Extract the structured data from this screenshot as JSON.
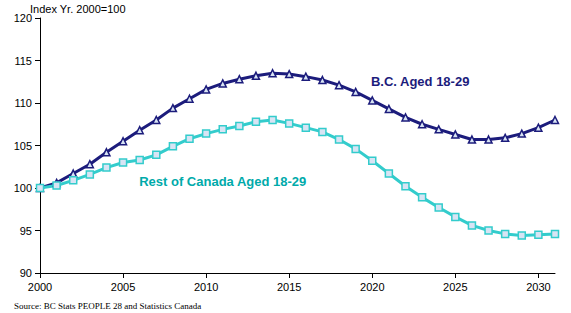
{
  "chart_data": {
    "type": "line",
    "y_label": "Index Yr. 2000=100",
    "source": "Source: BC Stats PEOPLE 28 and Statistics Canada",
    "x": [
      2000,
      2001,
      2002,
      2003,
      2004,
      2005,
      2006,
      2007,
      2008,
      2009,
      2010,
      2011,
      2012,
      2013,
      2014,
      2015,
      2016,
      2017,
      2018,
      2019,
      2020,
      2021,
      2022,
      2023,
      2024,
      2025,
      2026,
      2027,
      2028,
      2029,
      2030,
      2031
    ],
    "series": [
      {
        "name": "B.C. Aged 18-29",
        "color": "#1c1c7c",
        "marker": "triangle",
        "values": [
          100,
          100.6,
          101.7,
          102.8,
          104.2,
          105.5,
          106.8,
          108.0,
          109.4,
          110.5,
          111.6,
          112.3,
          112.8,
          113.2,
          113.5,
          113.4,
          113.1,
          112.7,
          112.1,
          111.3,
          110.3,
          109.3,
          108.3,
          107.5,
          106.9,
          106.3,
          105.7,
          105.7,
          105.9,
          106.4,
          107.1,
          108.0
        ]
      },
      {
        "name": "Rest of Canada Aged 18-29",
        "color": "#33cccc",
        "marker": "rect",
        "values": [
          100,
          100.3,
          100.9,
          101.6,
          102.4,
          103.0,
          103.3,
          103.9,
          104.9,
          105.8,
          106.4,
          106.9,
          107.3,
          107.8,
          108.0,
          107.6,
          107.1,
          106.6,
          105.7,
          104.6,
          103.2,
          101.7,
          100.2,
          98.9,
          97.7,
          96.6,
          95.6,
          95.0,
          94.6,
          94.4,
          94.5,
          94.6
        ]
      }
    ],
    "xlim": [
      2000,
      2031
    ],
    "xticks": [
      2000,
      2005,
      2010,
      2015,
      2020,
      2025,
      2030
    ],
    "ylim": [
      90,
      120
    ],
    "yticks": [
      90,
      95,
      100,
      105,
      110,
      115,
      120
    ],
    "grid": false
  }
}
